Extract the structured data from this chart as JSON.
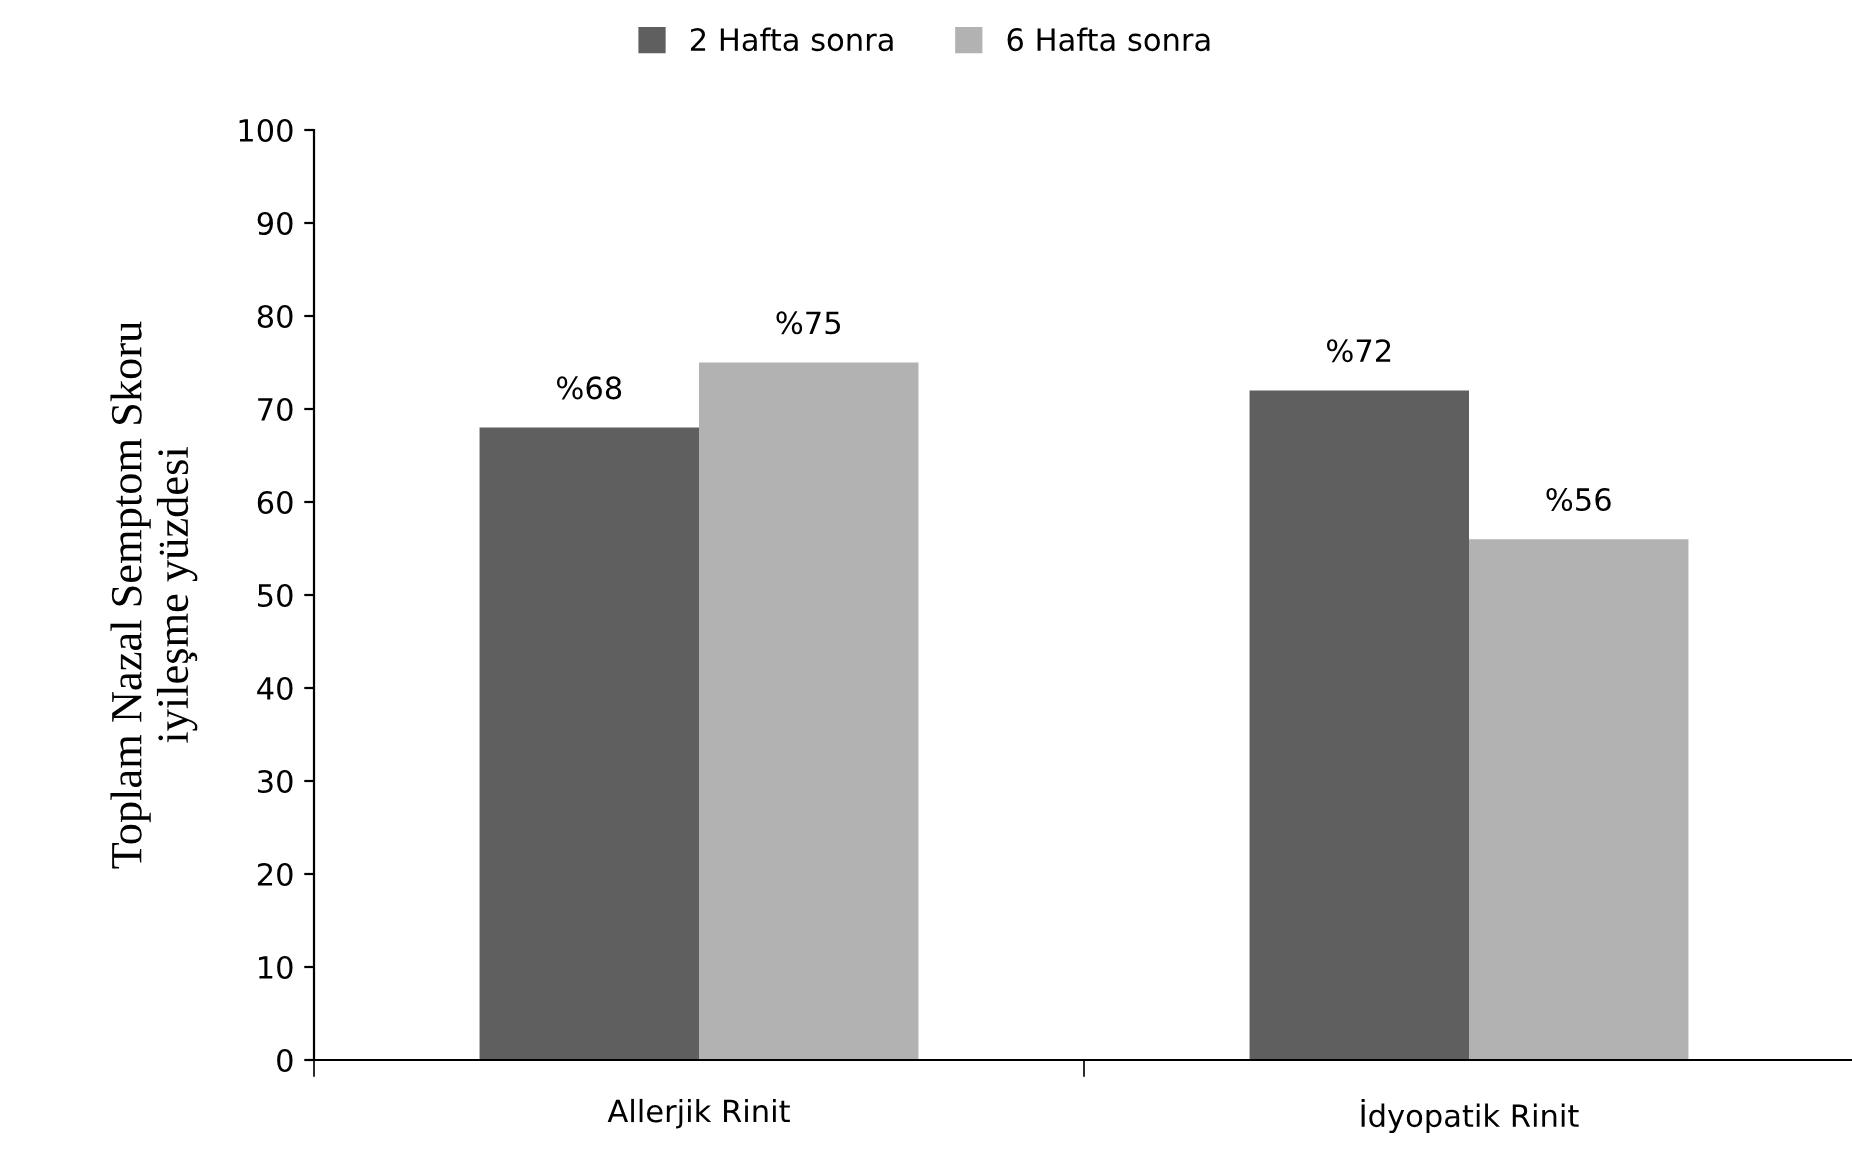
{
  "chart_data": {
    "type": "bar",
    "ylabel": "Toplam Nazal Semptom Skoru\niyileşme yüzdesi",
    "categories": [
      "Allerjik Rinit",
      "İdyopatik Rinit"
    ],
    "series": [
      {
        "name": "2 Hafta sonra",
        "color": "#5f5f5f",
        "values": [
          68,
          72
        ],
        "value_labels": [
          "%68",
          "%72"
        ]
      },
      {
        "name": "6 Hafta sonra",
        "color": "#b2b2b2",
        "values": [
          75,
          56
        ],
        "value_labels": [
          "%75",
          "%56"
        ]
      }
    ],
    "ylim": [
      0,
      100
    ],
    "yticks": [
      0,
      10,
      20,
      30,
      40,
      50,
      60,
      70,
      80,
      90,
      100
    ],
    "grid": false,
    "legend": "top"
  }
}
